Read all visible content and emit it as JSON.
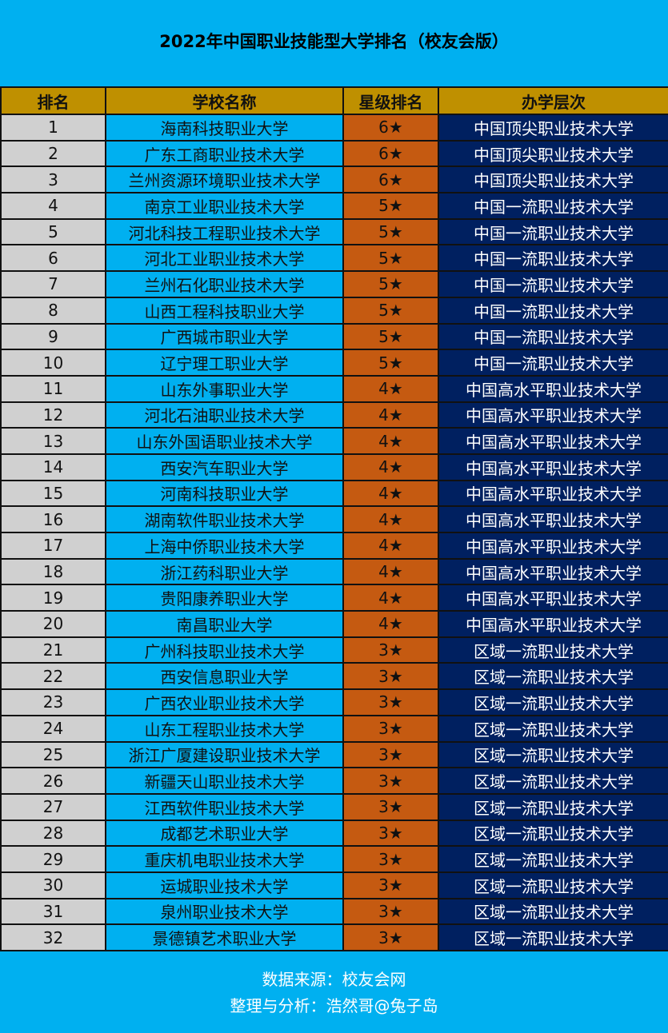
{
  "title": "2022年中国职业技能型大学排名（校友会版）",
  "colors": {
    "background": "#00B0F0",
    "header": "#BF9000",
    "rank_cell": "#D0D0D0",
    "star_cell": "#C55A11",
    "level_cell": "#002060"
  },
  "table": {
    "headers": [
      "排名",
      "学校名称",
      "星级排名",
      "办学层次"
    ],
    "rows": [
      [
        "1",
        "海南科技职业大学",
        "6★",
        "中国顶尖职业技术大学"
      ],
      [
        "2",
        "广东工商职业技术大学",
        "6★",
        "中国顶尖职业技术大学"
      ],
      [
        "3",
        "兰州资源环境职业技术大学",
        "6★",
        "中国顶尖职业技术大学"
      ],
      [
        "4",
        "南京工业职业技术大学",
        "5★",
        "中国一流职业技术大学"
      ],
      [
        "5",
        "河北科技工程职业技术大学",
        "5★",
        "中国一流职业技术大学"
      ],
      [
        "6",
        "河北工业职业技术大学",
        "5★",
        "中国一流职业技术大学"
      ],
      [
        "7",
        "兰州石化职业技术大学",
        "5★",
        "中国一流职业技术大学"
      ],
      [
        "8",
        "山西工程科技职业大学",
        "5★",
        "中国一流职业技术大学"
      ],
      [
        "9",
        "广西城市职业大学",
        "5★",
        "中国一流职业技术大学"
      ],
      [
        "10",
        "辽宁理工职业大学",
        "5★",
        "中国一流职业技术大学"
      ],
      [
        "11",
        "山东外事职业大学",
        "4★",
        "中国高水平职业技术大学"
      ],
      [
        "12",
        "河北石油职业技术大学",
        "4★",
        "中国高水平职业技术大学"
      ],
      [
        "13",
        "山东外国语职业技术大学",
        "4★",
        "中国高水平职业技术大学"
      ],
      [
        "14",
        "西安汽车职业大学",
        "4★",
        "中国高水平职业技术大学"
      ],
      [
        "15",
        "河南科技职业大学",
        "4★",
        "中国高水平职业技术大学"
      ],
      [
        "16",
        "湖南软件职业技术大学",
        "4★",
        "中国高水平职业技术大学"
      ],
      [
        "17",
        "上海中侨职业技术大学",
        "4★",
        "中国高水平职业技术大学"
      ],
      [
        "18",
        "浙江药科职业大学",
        "4★",
        "中国高水平职业技术大学"
      ],
      [
        "19",
        "贵阳康养职业大学",
        "4★",
        "中国高水平职业技术大学"
      ],
      [
        "20",
        "南昌职业大学",
        "4★",
        "中国高水平职业技术大学"
      ],
      [
        "21",
        "广州科技职业技术大学",
        "3★",
        "区域一流职业技术大学"
      ],
      [
        "22",
        "西安信息职业大学",
        "3★",
        "区域一流职业技术大学"
      ],
      [
        "23",
        "广西农业职业技术大学",
        "3★",
        "区域一流职业技术大学"
      ],
      [
        "24",
        "山东工程职业技术大学",
        "3★",
        "区域一流职业技术大学"
      ],
      [
        "25",
        "浙江广厦建设职业技术大学",
        "3★",
        "区域一流职业技术大学"
      ],
      [
        "26",
        "新疆天山职业技术大学",
        "3★",
        "区域一流职业技术大学"
      ],
      [
        "27",
        "江西软件职业技术大学",
        "3★",
        "区域一流职业技术大学"
      ],
      [
        "28",
        "成都艺术职业大学",
        "3★",
        "区域一流职业技术大学"
      ],
      [
        "29",
        "重庆机电职业技术大学",
        "3★",
        "区域一流职业技术大学"
      ],
      [
        "30",
        "运城职业技术大学",
        "3★",
        "区域一流职业技术大学"
      ],
      [
        "31",
        "泉州职业技术大学",
        "3★",
        "区域一流职业技术大学"
      ],
      [
        "32",
        "景德镇艺术职业大学",
        "3★",
        "区域一流职业技术大学"
      ]
    ]
  },
  "footer": {
    "source": "数据来源：校友会网",
    "credit": "整理与分析：浩然哥@兔子岛"
  }
}
